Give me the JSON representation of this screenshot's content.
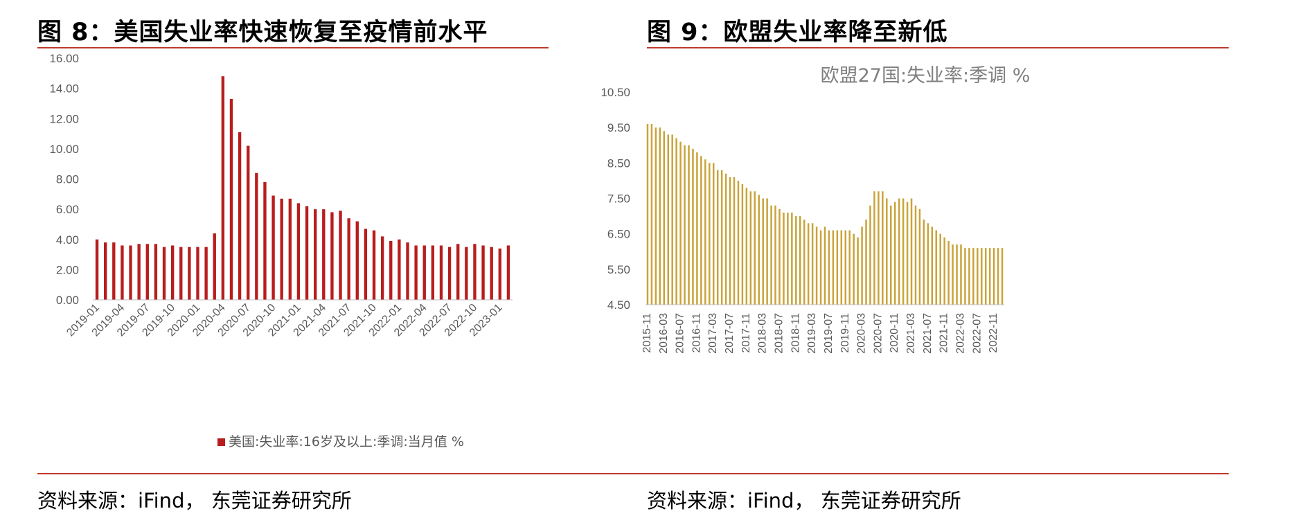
{
  "left": {
    "figure_title": "图 8：美国失业率快速恢复至疫情前水平",
    "source": "资料来源：iFind， 东莞证券研究所"
  },
  "right": {
    "figure_title": "图 9：欧盟失业率降至新低",
    "source": "资料来源：iFind， 东莞证券研究所"
  },
  "colors": {
    "rule": "#c0392b",
    "us_bar": "#b81d1d",
    "eu_bar": "#c9a33a"
  },
  "chart_data": [
    {
      "type": "bar",
      "legend_position": "bottom",
      "grid": false,
      "ylim": [
        0,
        16
      ],
      "yticks": [
        "0.00",
        "2.00",
        "4.00",
        "6.00",
        "8.00",
        "10.00",
        "12.00",
        "14.00",
        "16.00"
      ],
      "x": [
        "2019-01",
        "2019-02",
        "2019-03",
        "2019-04",
        "2019-05",
        "2019-06",
        "2019-07",
        "2019-08",
        "2019-09",
        "2019-10",
        "2019-11",
        "2019-12",
        "2020-01",
        "2020-02",
        "2020-03",
        "2020-04",
        "2020-05",
        "2020-06",
        "2020-07",
        "2020-08",
        "2020-09",
        "2020-10",
        "2020-11",
        "2020-12",
        "2021-01",
        "2021-02",
        "2021-03",
        "2021-04",
        "2021-05",
        "2021-06",
        "2021-07",
        "2021-08",
        "2021-09",
        "2021-10",
        "2021-11",
        "2021-12",
        "2022-01",
        "2022-02",
        "2022-03",
        "2022-04",
        "2022-05",
        "2022-06",
        "2022-07",
        "2022-08",
        "2022-09",
        "2022-10",
        "2022-11",
        "2022-12",
        "2023-01",
        "2023-02"
      ],
      "xtick_labels": [
        "2019-01",
        "2019-04",
        "2019-07",
        "2019-10",
        "2020-01",
        "2020-04",
        "2020-07",
        "2020-10",
        "2021-01",
        "2021-04",
        "2021-07",
        "2021-10",
        "2022-01",
        "2022-04",
        "2022-07",
        "2022-10",
        "2023-01"
      ],
      "series": [
        {
          "name": "美国:失业率:16岁及以上:季调:当月值 %",
          "values": [
            4.0,
            3.8,
            3.8,
            3.6,
            3.6,
            3.7,
            3.7,
            3.7,
            3.5,
            3.6,
            3.5,
            3.5,
            3.5,
            3.5,
            4.4,
            14.8,
            13.3,
            11.1,
            10.2,
            8.4,
            7.8,
            6.9,
            6.7,
            6.7,
            6.4,
            6.2,
            6.0,
            6.0,
            5.8,
            5.9,
            5.4,
            5.2,
            4.7,
            4.6,
            4.2,
            3.9,
            4.0,
            3.8,
            3.6,
            3.6,
            3.6,
            3.6,
            3.5,
            3.7,
            3.5,
            3.7,
            3.6,
            3.5,
            3.4,
            3.6
          ]
        }
      ]
    },
    {
      "type": "bar",
      "title": "欧盟27国:失业率:季调 %",
      "grid": false,
      "ylim": [
        4.5,
        10.5
      ],
      "yticks": [
        "4.50",
        "5.50",
        "6.50",
        "7.50",
        "8.50",
        "9.50",
        "10.50"
      ],
      "x": [
        "2015-11",
        "2015-12",
        "2016-01",
        "2016-02",
        "2016-03",
        "2016-04",
        "2016-05",
        "2016-06",
        "2016-07",
        "2016-08",
        "2016-09",
        "2016-10",
        "2016-11",
        "2016-12",
        "2017-01",
        "2017-02",
        "2017-03",
        "2017-04",
        "2017-05",
        "2017-06",
        "2017-07",
        "2017-08",
        "2017-09",
        "2017-10",
        "2017-11",
        "2017-12",
        "2018-01",
        "2018-02",
        "2018-03",
        "2018-04",
        "2018-05",
        "2018-06",
        "2018-07",
        "2018-08",
        "2018-09",
        "2018-10",
        "2018-11",
        "2018-12",
        "2019-01",
        "2019-02",
        "2019-03",
        "2019-04",
        "2019-05",
        "2019-06",
        "2019-07",
        "2019-08",
        "2019-09",
        "2019-10",
        "2019-11",
        "2019-12",
        "2020-01",
        "2020-02",
        "2020-03",
        "2020-04",
        "2020-05",
        "2020-06",
        "2020-07",
        "2020-08",
        "2020-09",
        "2020-10",
        "2020-11",
        "2020-12",
        "2021-01",
        "2021-02",
        "2021-03",
        "2021-04",
        "2021-05",
        "2021-06",
        "2021-07",
        "2021-08",
        "2021-09",
        "2021-10",
        "2021-11",
        "2021-12",
        "2022-01",
        "2022-02",
        "2022-03",
        "2022-04",
        "2022-05",
        "2022-06",
        "2022-07",
        "2022-08",
        "2022-09",
        "2022-10",
        "2022-11",
        "2022-12",
        "2023-01"
      ],
      "xtick_labels": [
        "2015-11",
        "2016-03",
        "2016-07",
        "2016-11",
        "2017-03",
        "2017-07",
        "2017-11",
        "2018-03",
        "2018-07",
        "2018-11",
        "2019-03",
        "2019-07",
        "2019-11",
        "2020-03",
        "2020-07",
        "2020-11",
        "2021-03",
        "2021-07",
        "2021-11",
        "2022-03",
        "2022-07",
        "2022-11"
      ],
      "series": [
        {
          "values": [
            9.6,
            9.6,
            9.5,
            9.5,
            9.4,
            9.3,
            9.3,
            9.2,
            9.1,
            9.0,
            9.0,
            8.9,
            8.8,
            8.7,
            8.6,
            8.5,
            8.5,
            8.3,
            8.3,
            8.2,
            8.1,
            8.1,
            8.0,
            7.9,
            7.8,
            7.7,
            7.7,
            7.6,
            7.5,
            7.5,
            7.3,
            7.3,
            7.2,
            7.1,
            7.1,
            7.1,
            7.0,
            7.0,
            6.9,
            6.8,
            6.8,
            6.7,
            6.6,
            6.7,
            6.6,
            6.6,
            6.6,
            6.6,
            6.6,
            6.6,
            6.5,
            6.4,
            6.7,
            6.9,
            7.3,
            7.7,
            7.7,
            7.7,
            7.5,
            7.3,
            7.4,
            7.5,
            7.5,
            7.4,
            7.5,
            7.3,
            7.2,
            6.9,
            6.8,
            6.7,
            6.6,
            6.5,
            6.4,
            6.3,
            6.2,
            6.2,
            6.2,
            6.1,
            6.1,
            6.1,
            6.1,
            6.1,
            6.1,
            6.1,
            6.1,
            6.1,
            6.1
          ]
        }
      ]
    }
  ]
}
